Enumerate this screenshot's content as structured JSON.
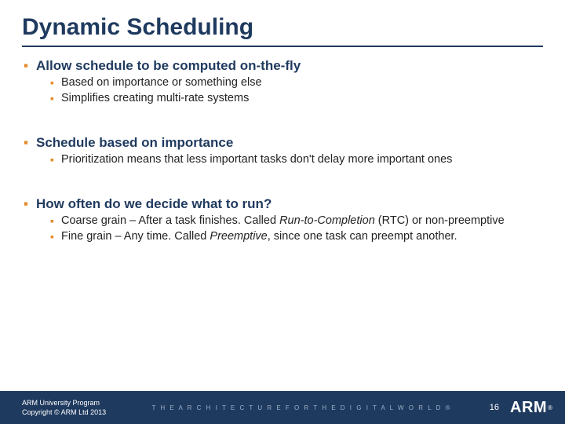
{
  "title": "Dynamic Scheduling",
  "colors": {
    "heading": "#1f3a5f",
    "bullet": "#e38b28",
    "body": "#222222",
    "footer_bg": "#1f3a5f",
    "footer_text": "#ffffff",
    "tagline": "#9db0c6"
  },
  "sections": [
    {
      "heading": "Allow schedule to be computed on-the-fly",
      "items": [
        {
          "text": "Based on importance or something else"
        },
        {
          "text": "Simplifies creating multi-rate systems"
        }
      ]
    },
    {
      "heading": "Schedule based on importance",
      "items": [
        {
          "text": "Prioritization means that less important tasks don't delay more important ones"
        }
      ]
    },
    {
      "heading": "How often do we decide what to run?",
      "items": [
        {
          "pre": "Coarse grain – After a task finishes. Called ",
          "em": "Run-to-Completion",
          "post": " (RTC) or non-preemptive"
        },
        {
          "pre": "Fine grain – Any time. Called ",
          "em": "Preemptive",
          "post": ", since one task can preempt another."
        }
      ]
    }
  ],
  "footer": {
    "line1": "ARM University Program",
    "line2": "Copyright © ARM Ltd 2013",
    "tagline": "T H E   A R C H I T E C T U R E   F O R   T H E   D I G I T A L   W O R L D ®",
    "page": "16",
    "logo": "ARM",
    "reg": "®"
  }
}
